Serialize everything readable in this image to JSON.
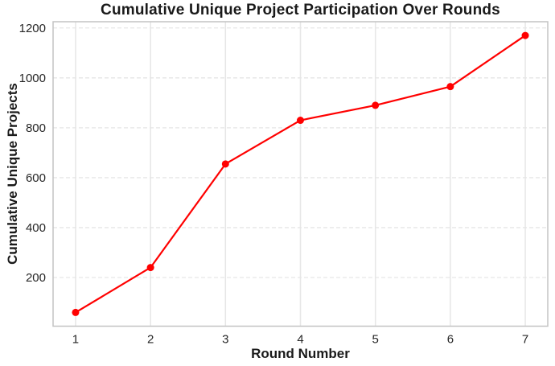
{
  "chart_data": {
    "type": "line",
    "title": "Cumulative Unique Project Participation Over Rounds",
    "xlabel": "Round Number",
    "ylabel": "Cumulative Unique Projects",
    "series": [
      {
        "name": "Cumulative Unique Projects",
        "x": [
          1,
          2,
          3,
          4,
          5,
          6,
          7
        ],
        "values": [
          60,
          240,
          655,
          830,
          890,
          965,
          1170
        ]
      }
    ],
    "xticks": [
      1,
      2,
      3,
      4,
      5,
      6,
      7
    ],
    "yticks": [
      200,
      400,
      600,
      800,
      1000,
      1200
    ],
    "xlim": [
      0.7,
      7.3
    ],
    "ylim": [
      5,
      1225
    ],
    "grid": "on",
    "grid_style": {
      "vertical": "solid",
      "horizontal": "dashed"
    },
    "legend": "none",
    "marker": "circle"
  },
  "colors": {
    "line": "#ff0000",
    "marker": "#ff0000",
    "grid": "#e6e6e6",
    "spine": "#c4c4c4",
    "title_text": "#1a1a1a",
    "tick_text": "#262626",
    "background": "#ffffff"
  }
}
